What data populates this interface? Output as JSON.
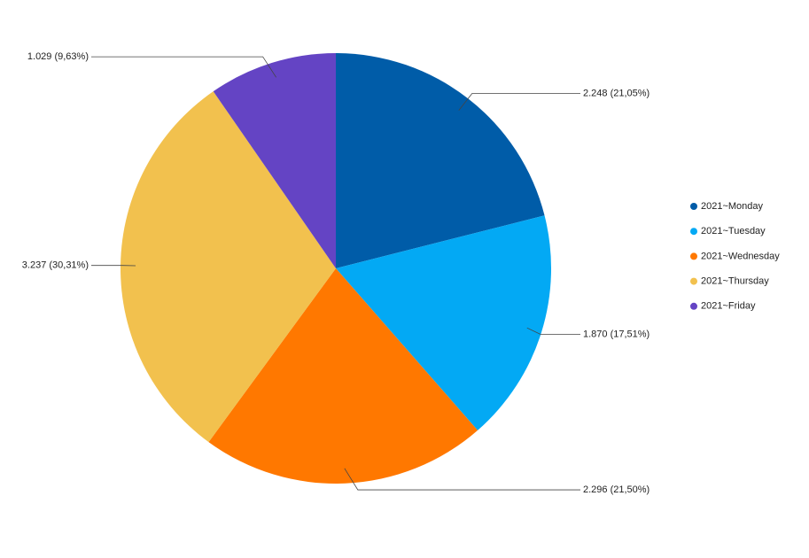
{
  "chart_data": {
    "type": "pie",
    "categories": [
      "2021~Monday",
      "2021~Tuesday",
      "2021~Wednesday",
      "2021~Thursday",
      "2021~Friday"
    ],
    "values": [
      2248,
      1870,
      2296,
      3237,
      1029
    ],
    "value_labels": [
      "2.248 (21,05%)",
      "1.870 (17,51%)",
      "2.296 (21,50%)",
      "3.237 (30,31%)",
      "1.029 (9,63%)"
    ],
    "colors": [
      "#005ca8",
      "#03a9f4",
      "#ff7800",
      "#f2c14e",
      "#6444c4"
    ],
    "legend": "right"
  }
}
